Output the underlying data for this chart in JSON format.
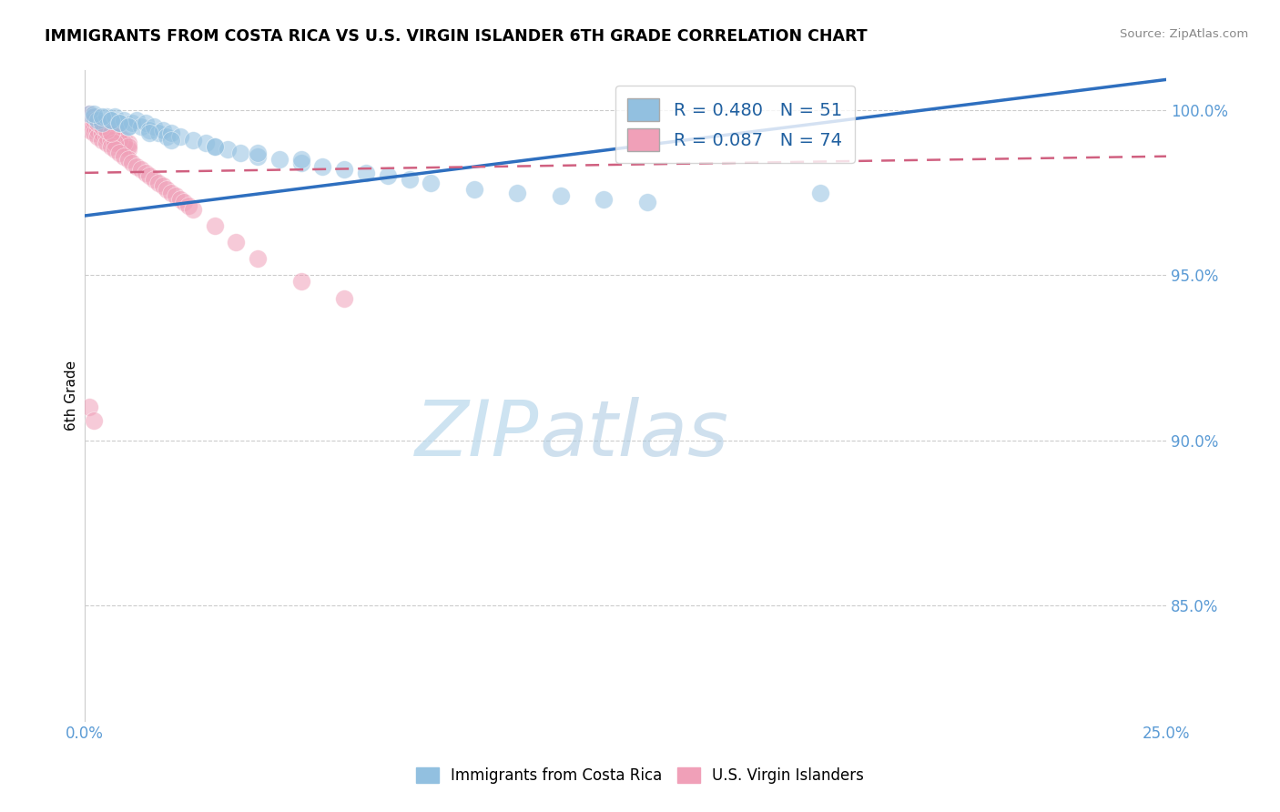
{
  "title": "IMMIGRANTS FROM COSTA RICA VS U.S. VIRGIN ISLANDER 6TH GRADE CORRELATION CHART",
  "source": "Source: ZipAtlas.com",
  "ylabel": "6th Grade",
  "R_blue": 0.48,
  "N_blue": 51,
  "R_pink": 0.087,
  "N_pink": 74,
  "blue_color": "#92C0E0",
  "pink_color": "#F0A0B8",
  "blue_line_color": "#2E6FBF",
  "pink_line_color": "#D06080",
  "legend_blue_label": "Immigrants from Costa Rica",
  "legend_pink_label": "U.S. Virgin Islanders",
  "watermark_zip": "ZIP",
  "watermark_atlas": "atlas",
  "xmin": 0.0,
  "xmax": 0.25,
  "ymin": 0.815,
  "ymax": 1.012,
  "ytick_vals": [
    0.85,
    0.9,
    0.95,
    1.0
  ],
  "ytick_labels": [
    "85.0%",
    "90.0%",
    "95.0%",
    "100.0%"
  ],
  "xtick_vals": [
    0.0,
    0.25
  ],
  "xtick_labels": [
    "0.0%",
    "25.0%"
  ],
  "tick_color": "#5B9BD5",
  "grid_color": "#CCCCCC",
  "blue_x": [
    0.001,
    0.002,
    0.003,
    0.004,
    0.005,
    0.006,
    0.007,
    0.008,
    0.009,
    0.01,
    0.011,
    0.012,
    0.013,
    0.014,
    0.015,
    0.016,
    0.017,
    0.018,
    0.019,
    0.02,
    0.022,
    0.025,
    0.028,
    0.03,
    0.033,
    0.036,
    0.04,
    0.045,
    0.05,
    0.055,
    0.06,
    0.065,
    0.07,
    0.075,
    0.08,
    0.09,
    0.1,
    0.11,
    0.12,
    0.13,
    0.002,
    0.004,
    0.006,
    0.008,
    0.01,
    0.015,
    0.02,
    0.03,
    0.04,
    0.05,
    0.17
  ],
  "blue_y": [
    0.999,
    0.998,
    0.997,
    0.996,
    0.998,
    0.997,
    0.998,
    0.996,
    0.997,
    0.995,
    0.996,
    0.997,
    0.995,
    0.996,
    0.994,
    0.995,
    0.993,
    0.994,
    0.992,
    0.993,
    0.992,
    0.991,
    0.99,
    0.989,
    0.988,
    0.987,
    0.986,
    0.985,
    0.984,
    0.983,
    0.982,
    0.981,
    0.98,
    0.979,
    0.978,
    0.976,
    0.975,
    0.974,
    0.973,
    0.972,
    0.999,
    0.998,
    0.997,
    0.996,
    0.995,
    0.993,
    0.991,
    0.989,
    0.987,
    0.985,
    0.975
  ],
  "pink_x": [
    0.001,
    0.001,
    0.002,
    0.002,
    0.003,
    0.003,
    0.004,
    0.004,
    0.005,
    0.005,
    0.006,
    0.006,
    0.007,
    0.007,
    0.008,
    0.008,
    0.009,
    0.009,
    0.01,
    0.01,
    0.001,
    0.002,
    0.003,
    0.004,
    0.005,
    0.006,
    0.007,
    0.008,
    0.009,
    0.01,
    0.001,
    0.001,
    0.002,
    0.002,
    0.003,
    0.003,
    0.004,
    0.004,
    0.005,
    0.005,
    0.006,
    0.006,
    0.007,
    0.007,
    0.008,
    0.009,
    0.01,
    0.011,
    0.012,
    0.013,
    0.014,
    0.015,
    0.016,
    0.017,
    0.018,
    0.019,
    0.02,
    0.021,
    0.022,
    0.023,
    0.024,
    0.025,
    0.03,
    0.035,
    0.04,
    0.002,
    0.003,
    0.004,
    0.005,
    0.006,
    0.001,
    0.002,
    0.05,
    0.06
  ],
  "pink_y": [
    0.999,
    0.997,
    0.998,
    0.996,
    0.997,
    0.995,
    0.996,
    0.994,
    0.995,
    0.993,
    0.994,
    0.992,
    0.993,
    0.991,
    0.992,
    0.99,
    0.991,
    0.989,
    0.99,
    0.988,
    0.998,
    0.997,
    0.996,
    0.995,
    0.994,
    0.993,
    0.992,
    0.991,
    0.99,
    0.989,
    0.996,
    0.994,
    0.995,
    0.993,
    0.994,
    0.992,
    0.993,
    0.991,
    0.992,
    0.99,
    0.991,
    0.989,
    0.99,
    0.988,
    0.987,
    0.986,
    0.985,
    0.984,
    0.983,
    0.982,
    0.981,
    0.98,
    0.979,
    0.978,
    0.977,
    0.976,
    0.975,
    0.974,
    0.973,
    0.972,
    0.971,
    0.97,
    0.965,
    0.96,
    0.955,
    0.997,
    0.996,
    0.995,
    0.994,
    0.993,
    0.91,
    0.906,
    0.948,
    0.943
  ]
}
